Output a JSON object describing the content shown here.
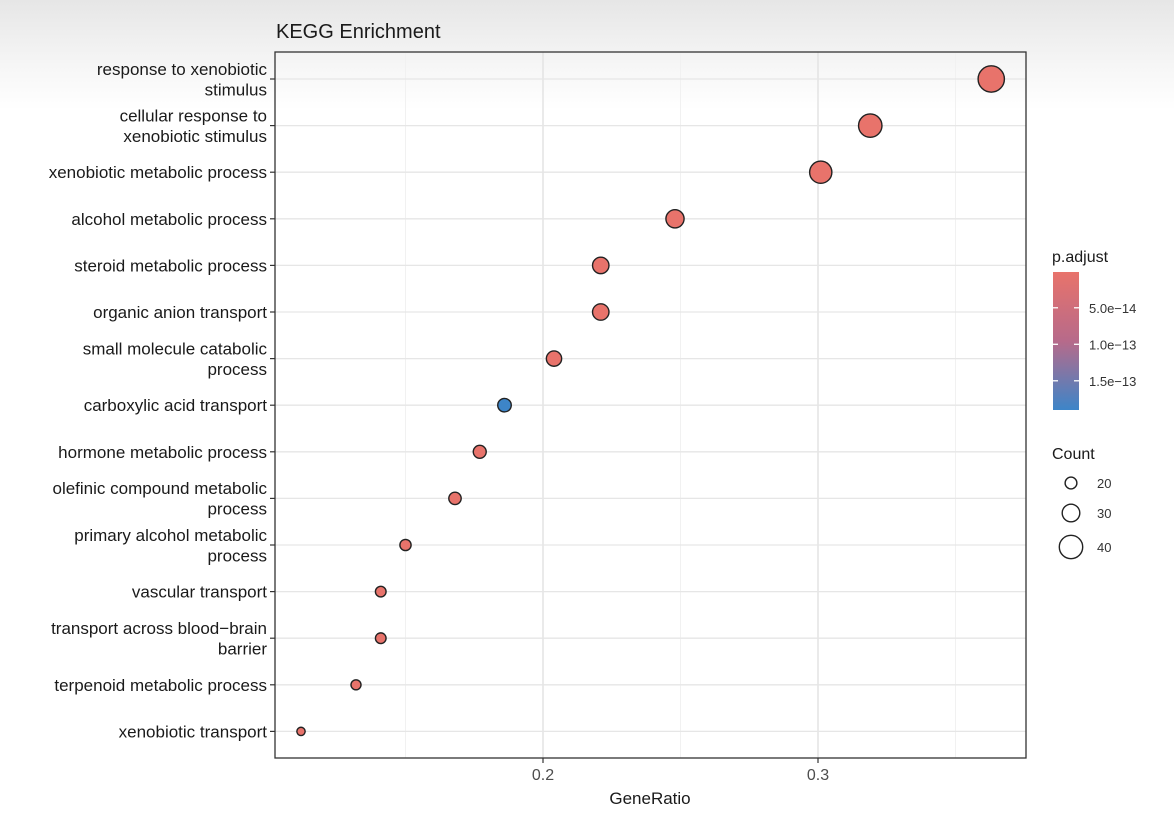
{
  "chart_data": {
    "type": "scatter",
    "title": "KEGG Enrichment",
    "xlabel": "GeneRatio",
    "ylabel": "",
    "xlim": [
      0.1,
      0.375
    ],
    "xticks": [
      0.2,
      0.3
    ],
    "xtick_labels": [
      "0.2",
      "0.3"
    ],
    "grid": true,
    "points": [
      {
        "term": [
          "response to xenobiotic",
          "stimulus"
        ],
        "x": 0.363,
        "count": 45,
        "padj": 1e-15
      },
      {
        "term": [
          "cellular response to",
          "xenobiotic stimulus"
        ],
        "x": 0.319,
        "count": 40,
        "padj": 1e-15
      },
      {
        "term": [
          "xenobiotic metabolic process"
        ],
        "x": 0.301,
        "count": 38,
        "padj": 1e-15
      },
      {
        "term": [
          "alcohol metabolic process"
        ],
        "x": 0.248,
        "count": 31,
        "padj": 1e-15
      },
      {
        "term": [
          "steroid metabolic process"
        ],
        "x": 0.221,
        "count": 28,
        "padj": 1e-15
      },
      {
        "term": [
          "organic anion transport"
        ],
        "x": 0.221,
        "count": 28,
        "padj": 1e-15
      },
      {
        "term": [
          "small molecule catabolic",
          "process"
        ],
        "x": 0.204,
        "count": 26,
        "padj": 1e-15
      },
      {
        "term": [
          "carboxylic acid transport"
        ],
        "x": 0.186,
        "count": 23,
        "padj": 1.9e-13
      },
      {
        "term": [
          "hormone metabolic process"
        ],
        "x": 0.177,
        "count": 22,
        "padj": 1e-15
      },
      {
        "term": [
          "olefinic compound metabolic",
          "process"
        ],
        "x": 0.168,
        "count": 21,
        "padj": 1e-15
      },
      {
        "term": [
          "primary alcohol metabolic",
          "process"
        ],
        "x": 0.15,
        "count": 19,
        "padj": 1e-15
      },
      {
        "term": [
          "vascular transport"
        ],
        "x": 0.141,
        "count": 18,
        "padj": 1e-15
      },
      {
        "term": [
          "transport across blood−brain",
          "barrier"
        ],
        "x": 0.141,
        "count": 18,
        "padj": 1e-15
      },
      {
        "term": [
          "terpenoid metabolic process"
        ],
        "x": 0.132,
        "count": 17,
        "padj": 1e-15
      },
      {
        "term": [
          "xenobiotic transport"
        ],
        "x": 0.112,
        "count": 14,
        "padj": 1e-15
      }
    ],
    "legend_color": {
      "title": "p.adjust",
      "ticks": [
        {
          "label": "5.0e−14",
          "value": 5e-14
        },
        {
          "label": "1.0e−13",
          "value": 1e-13
        },
        {
          "label": "1.5e−13",
          "value": 1.5e-13
        }
      ],
      "range": [
        1e-15,
        1.9e-13
      ],
      "low_color": "#e8736b",
      "high_color": "#3d85c8"
    },
    "legend_size": {
      "title": "Count",
      "entries": [
        20,
        30,
        40
      ]
    },
    "legend_placement": "right"
  }
}
